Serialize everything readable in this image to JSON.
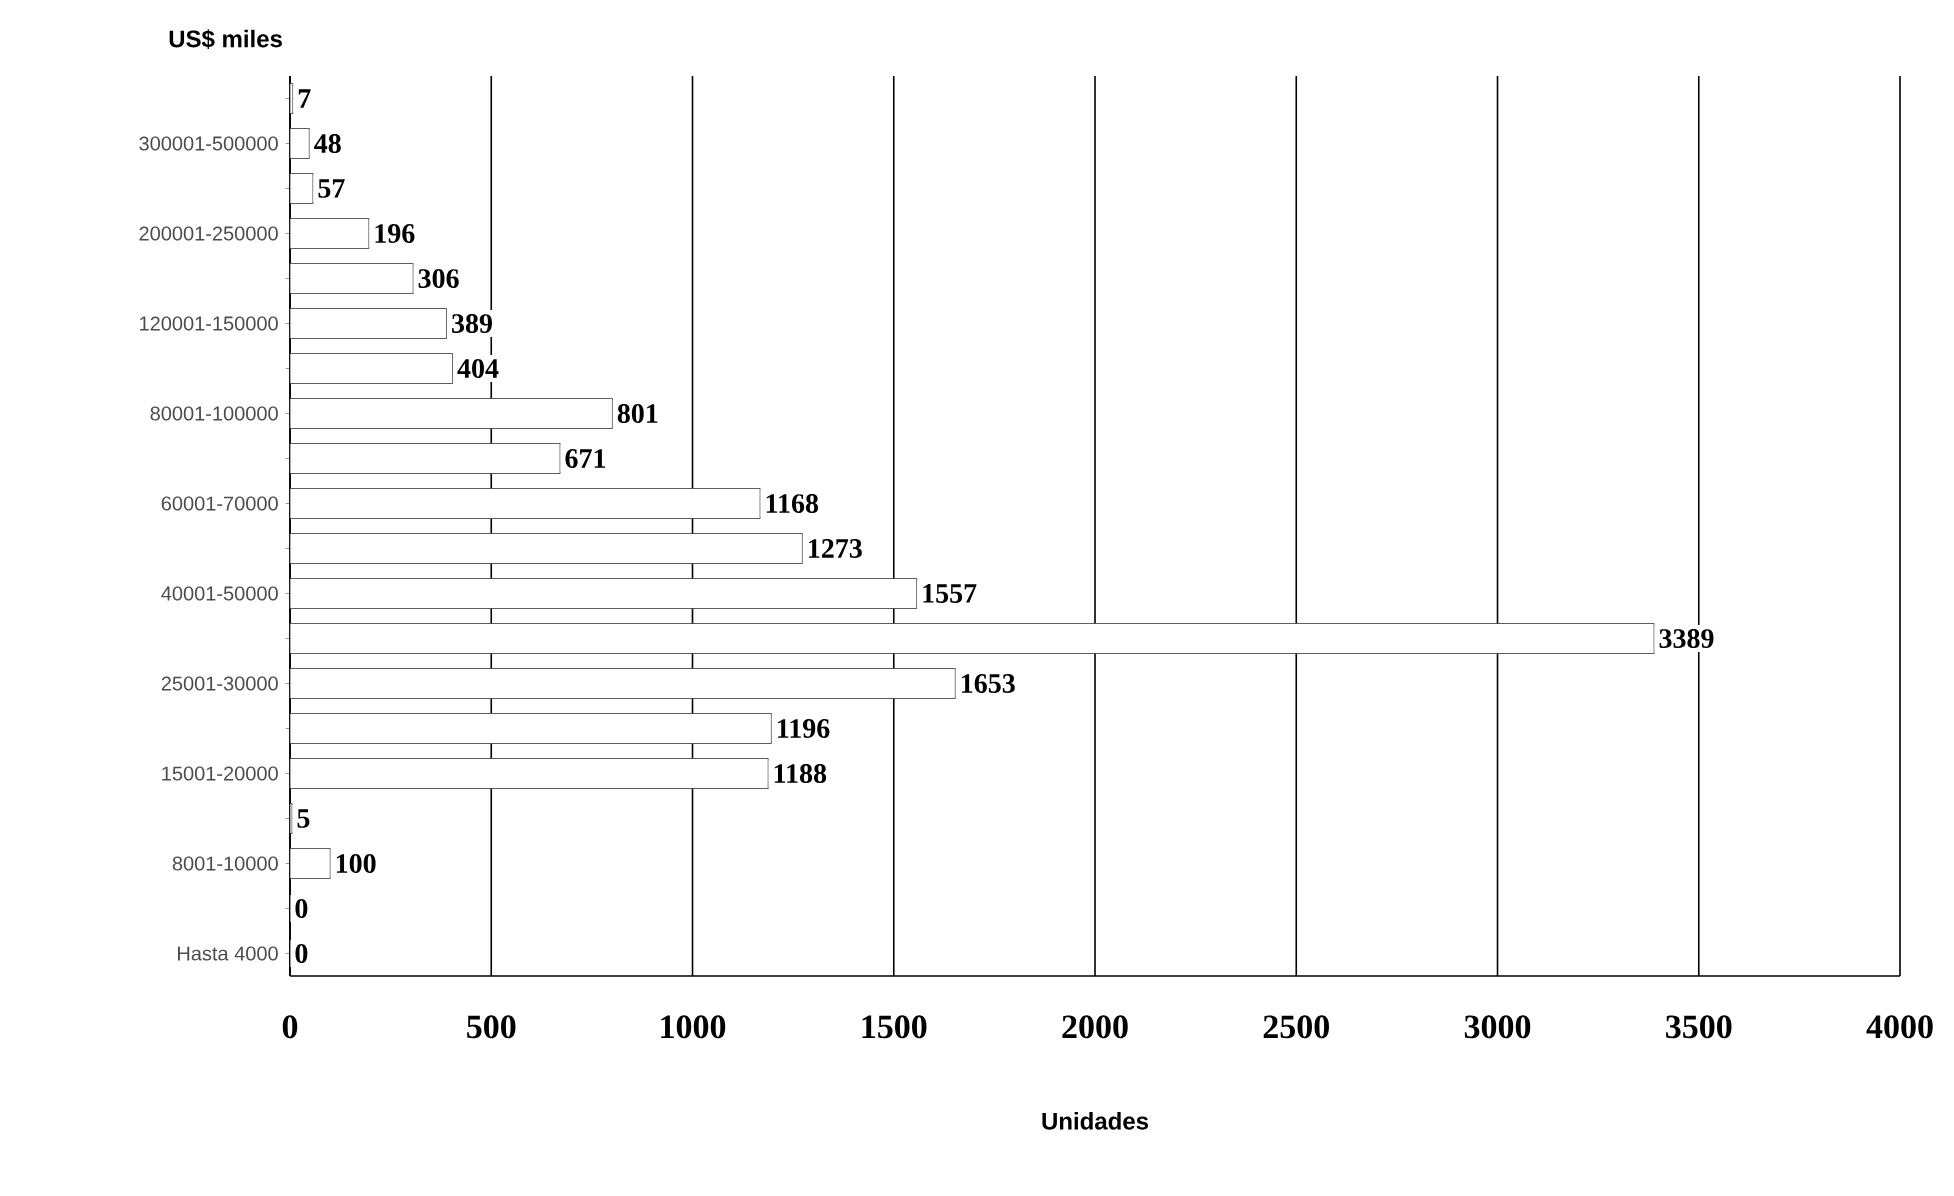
{
  "chart_data": {
    "type": "bar",
    "orientation": "horizontal",
    "ylabel": "US$ miles",
    "xlabel": "Unidades",
    "categories": [
      null,
      "300001-500000",
      null,
      "200001-250000",
      null,
      "120001-150000",
      null,
      "80001-100000",
      null,
      "60001-70000",
      null,
      "40001-50000",
      null,
      "25001-30000",
      null,
      "15001-20000",
      null,
      "8001-10000",
      null,
      "Hasta 4000"
    ],
    "values": [
      7,
      48,
      57,
      196,
      306,
      389,
      404,
      801,
      671,
      1168,
      1273,
      1557,
      3389,
      1653,
      1196,
      1188,
      5,
      100,
      0,
      0
    ],
    "color": "#ffffff",
    "data_labels": true,
    "grid": "x",
    "xlim": [
      0,
      4000
    ],
    "xticks": [
      0,
      500,
      1000,
      1500,
      2000,
      2500,
      3000,
      3500,
      4000
    ]
  }
}
